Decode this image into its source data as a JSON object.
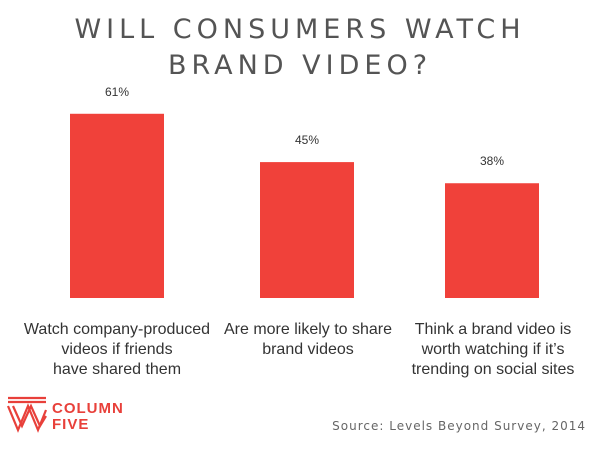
{
  "title_lines": [
    "WILL CONSUMERS WATCH",
    "BRAND VIDEO?"
  ],
  "colors": {
    "bar": "#f0413a",
    "title": "#545454",
    "accent": "#e8403a"
  },
  "chart_data": {
    "type": "bar",
    "categories": [
      "Watch company-produced videos if friends have shared them",
      "Are more likely to share brand videos",
      "Think a brand video is worth watching if it's trending on social sites"
    ],
    "values": [
      61,
      45,
      38
    ],
    "value_labels": [
      "61%",
      "45%",
      "38%"
    ],
    "title": "WILL CONSUMERS WATCH BRAND VIDEO?",
    "xlabel": "",
    "ylabel": "",
    "ylim": [
      0,
      100
    ],
    "grid": false,
    "legend": "none"
  },
  "category_label_lines": [
    [
      "Watch company-produced",
      "videos if friends",
      "have shared them"
    ],
    [
      "Are more likely to share",
      "brand videos"
    ],
    [
      "Think a brand video is",
      "worth watching if it’s",
      "trending on social sites"
    ]
  ],
  "logo": {
    "lines": [
      "COLUMN",
      "FIVE"
    ],
    "icon": "column-five-logo-mark"
  },
  "source": "Source: Levels Beyond Survey, 2014"
}
